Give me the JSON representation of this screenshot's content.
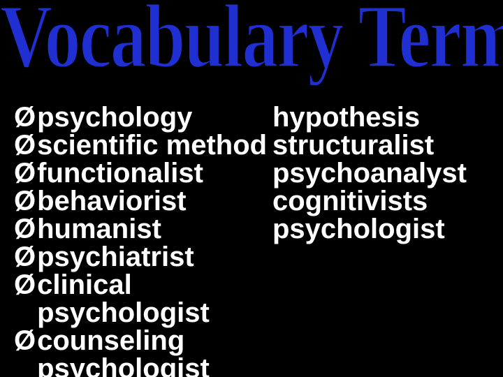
{
  "background_color": "#000000",
  "title": {
    "text": "Vocabulary Terms",
    "color": "#1f2fd1",
    "outline_color": "#000000",
    "font_family": "Times New Roman",
    "font_size": 104,
    "font_weight": 900
  },
  "list": {
    "bullet_glyph": "Ø",
    "text_color": "#ffffff",
    "font_size": 40,
    "font_weight": 700,
    "rows": [
      {
        "left": "psychology",
        "right": "hypothesis"
      },
      {
        "left": "scientific method",
        "right": "structuralist"
      },
      {
        "left": "functionalist",
        "right": "psychoanalyst"
      },
      {
        "left": "behaviorist",
        "right": "cognitivists"
      },
      {
        "left": "humanist",
        "right": "psychologist"
      },
      {
        "left": "psychiatrist",
        "right": ""
      },
      {
        "left": "clinical psychologist",
        "right": ""
      },
      {
        "left": "counseling psychologist",
        "right": ""
      }
    ]
  }
}
